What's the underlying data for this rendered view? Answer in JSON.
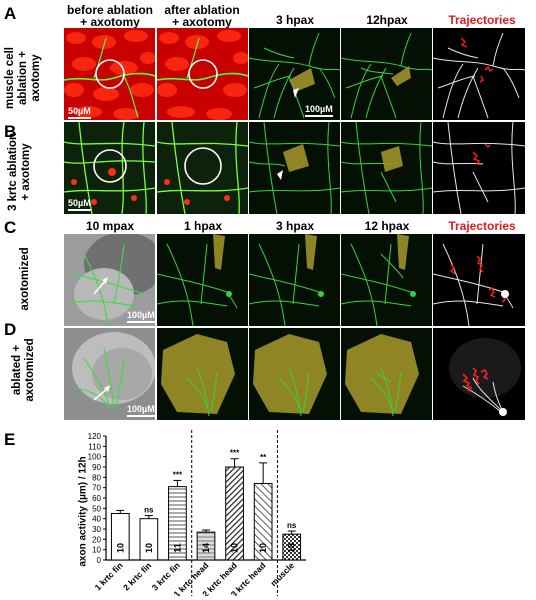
{
  "panels": {
    "A": {
      "letter": "A",
      "row_label_line1": "muscle cell",
      "row_label_line2": "ablation +",
      "row_label_line3": "axotomy",
      "headers": [
        "before ablation\n+ axotomy",
        "after ablation\n+ axotomy",
        "3 hpax",
        "12hpax",
        "Trajectories"
      ],
      "scale_left": "50µM",
      "scale_mid": "100µM"
    },
    "B": {
      "letter": "B",
      "row_label_line1": "3 krtc ablation",
      "row_label_line2": "+ axotomy",
      "scale_left": "50µM"
    },
    "C": {
      "letter": "C",
      "row_label": "axotomized",
      "headers": [
        "10 mpax",
        "1 hpax",
        "3 hpax",
        "12 hpax",
        "Trajectories"
      ],
      "scale_left": "100µM"
    },
    "D": {
      "letter": "D",
      "row_label_line1": "ablated +",
      "row_label_line2": "axotomized",
      "scale_left": "100µM"
    },
    "E": {
      "letter": "E"
    }
  },
  "chart_data": {
    "type": "bar",
    "ylabel": "axon activity (µm) / 12h",
    "ylim": [
      0,
      120
    ],
    "yticks": [
      0,
      10,
      20,
      30,
      40,
      50,
      60,
      70,
      80,
      90,
      100,
      110,
      120
    ],
    "categories": [
      "1 krtc fin",
      "2 krtc fin",
      "3 krtc fin",
      "1 krtc head",
      "2 krtc head",
      "3 krtc head",
      "muscle"
    ],
    "values": [
      45,
      40,
      71,
      27,
      90,
      74,
      25
    ],
    "errors": [
      3,
      3,
      6,
      2,
      8,
      20,
      3
    ],
    "n_labels": [
      "10",
      "10",
      "11",
      "14",
      "10",
      "10",
      "10"
    ],
    "significance": [
      "",
      "ns",
      "***",
      "",
      "***",
      "**",
      "ns"
    ],
    "patterns": [
      "white",
      "white",
      "hstripes",
      "light-hstripes",
      "diagonal-dense",
      "diagonal",
      "checker"
    ]
  }
}
